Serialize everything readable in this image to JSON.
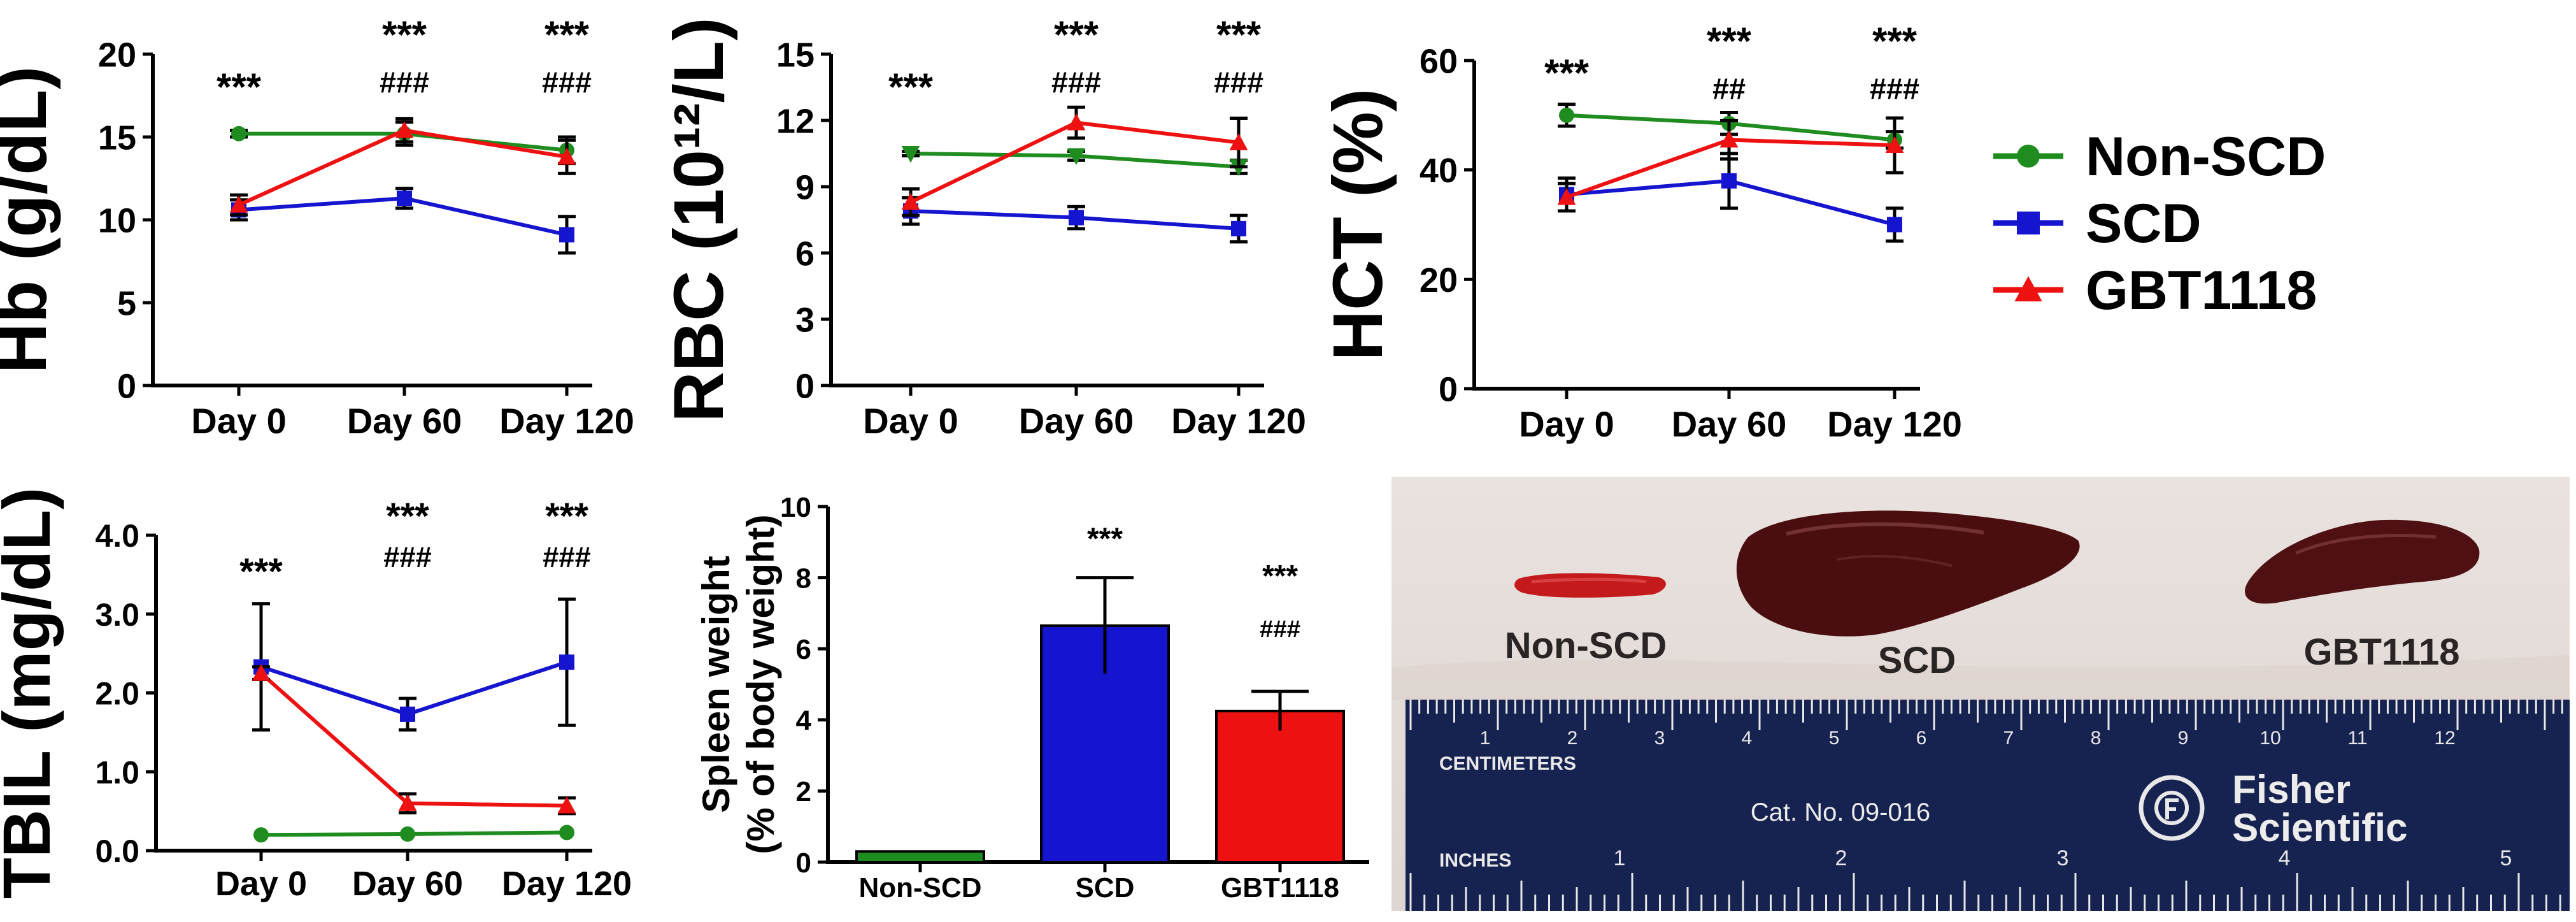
{
  "chart_data": [
    {
      "id": "hb",
      "type": "line",
      "ylabel": "Hb (g/dL)",
      "categories": [
        "Day 0",
        "Day 60",
        "Day 120"
      ],
      "ylim": [
        0,
        20
      ],
      "yticks": [
        "0",
        "5",
        "10",
        "15",
        "20"
      ],
      "series": [
        {
          "name": "Non-SCD",
          "color": "#1e8c1e",
          "marker": "circle",
          "values": [
            15.2,
            15.2,
            14.2
          ],
          "err": [
            0.2,
            0.7,
            0.8
          ]
        },
        {
          "name": "SCD",
          "color": "#1515d0",
          "marker": "square",
          "values": [
            10.6,
            11.3,
            9.1
          ],
          "err": [
            0.6,
            0.6,
            1.1
          ]
        },
        {
          "name": "GBT1118",
          "color": "#ee1111",
          "marker": "triangle",
          "values": [
            10.9,
            15.4,
            13.8
          ],
          "err": [
            0.6,
            0.7,
            1.0
          ]
        }
      ],
      "annotations": [
        [
          "***"
        ],
        [
          "***",
          "###"
        ],
        [
          "***",
          "###"
        ]
      ]
    },
    {
      "id": "rbc",
      "type": "line",
      "ylabel": "RBC (10¹²/L)",
      "categories": [
        "Day 0",
        "Day 60",
        "Day 120"
      ],
      "ylim": [
        0,
        15
      ],
      "yticks": [
        "0",
        "3",
        "6",
        "9",
        "12",
        "15"
      ],
      "series": [
        {
          "name": "Non-SCD",
          "color": "#1e8c1e",
          "marker": "triangle-down",
          "values": [
            10.5,
            10.4,
            9.9
          ],
          "err": [
            0.1,
            0.2,
            0.3
          ]
        },
        {
          "name": "SCD",
          "color": "#1515d0",
          "marker": "square",
          "values": [
            7.9,
            7.6,
            7.1
          ],
          "err": [
            0.6,
            0.5,
            0.6
          ]
        },
        {
          "name": "GBT1118",
          "color": "#ee1111",
          "marker": "triangle",
          "values": [
            8.3,
            11.9,
            11.0
          ],
          "err": [
            0.6,
            0.7,
            1.1
          ]
        }
      ],
      "annotations": [
        [
          "***"
        ],
        [
          "***",
          "###"
        ],
        [
          "***",
          "###"
        ]
      ]
    },
    {
      "id": "hct",
      "type": "line",
      "ylabel": "HCT (%)",
      "categories": [
        "Day 0",
        "Day 60",
        "Day 120"
      ],
      "ylim": [
        0,
        60
      ],
      "yticks": [
        "0",
        "20",
        "40",
        "60"
      ],
      "series": [
        {
          "name": "Non-SCD",
          "color": "#1e8c1e",
          "marker": "circle",
          "values": [
            50,
            48.5,
            45.5
          ],
          "err": [
            2.0,
            2.0,
            1.5
          ]
        },
        {
          "name": "SCD",
          "color": "#1515d0",
          "marker": "square",
          "values": [
            35.5,
            38,
            30
          ],
          "err": [
            3.0,
            5.0,
            3.0
          ]
        },
        {
          "name": "GBT1118",
          "color": "#ee1111",
          "marker": "triangle",
          "values": [
            35,
            45.5,
            44.5
          ],
          "err": [
            2.5,
            3.5,
            5.0
          ]
        }
      ],
      "annotations": [
        [
          "***"
        ],
        [
          "***",
          "##"
        ],
        [
          "***",
          "###"
        ]
      ]
    },
    {
      "id": "tbil",
      "type": "line",
      "ylabel": "TBIL (mg/dL)",
      "categories": [
        "Day 0",
        "Day 60",
        "Day 120"
      ],
      "ylim": [
        0,
        4
      ],
      "yticks": [
        "0.0",
        "1.0",
        "2.0",
        "3.0",
        "4.0"
      ],
      "series": [
        {
          "name": "Non-SCD",
          "color": "#1e8c1e",
          "marker": "circle",
          "values": [
            0.2,
            0.21,
            0.23
          ],
          "err": [
            0.01,
            0.01,
            0.01
          ]
        },
        {
          "name": "SCD",
          "color": "#1515d0",
          "marker": "square",
          "values": [
            2.33,
            1.73,
            2.39
          ],
          "err": [
            0.8,
            0.2,
            0.8
          ]
        },
        {
          "name": "GBT1118",
          "color": "#ee1111",
          "marker": "triangle",
          "values": [
            2.25,
            0.6,
            0.57
          ],
          "err": [
            0.08,
            0.12,
            0.1
          ]
        }
      ],
      "annotations": [
        [
          "***"
        ],
        [
          "***",
          "###"
        ],
        [
          "***",
          "###"
        ]
      ]
    },
    {
      "id": "spleen",
      "type": "bar",
      "ylabel": "Spleen weight (% of body weight)",
      "categories": [
        "Non-SCD",
        "SCD",
        "GBT1118"
      ],
      "ylim": [
        0,
        10
      ],
      "yticks": [
        "0",
        "2",
        "4",
        "6",
        "8",
        "10"
      ],
      "values": [
        0.3,
        6.65,
        4.25
      ],
      "err": [
        0.03,
        1.35,
        0.55
      ],
      "colors": [
        "#1e8c1e",
        "#1515d0",
        "#ee1111"
      ],
      "annotations": [
        [],
        [
          "***"
        ],
        [
          "***",
          "###"
        ]
      ]
    }
  ],
  "legend": [
    {
      "name": "Non-SCD",
      "color": "#1e8c1e",
      "marker": "circle"
    },
    {
      "name": "SCD",
      "color": "#1515d0",
      "marker": "square"
    },
    {
      "name": "GBT1118",
      "color": "#ee1111",
      "marker": "triangle"
    }
  ],
  "photo": {
    "labels": [
      "Non-SCD",
      "SCD",
      "GBT1118"
    ],
    "ruler_centimeters": "CENTIMETERS",
    "ruler_inches": "INCHES",
    "catalog": "Cat. No. 09-016",
    "brand_line1": "Fisher",
    "brand_line2": "Scientific",
    "cm_numbers": [
      "1",
      "2",
      "3",
      "4",
      "5",
      "6",
      "7",
      "8",
      "9",
      "10",
      "11",
      "12"
    ],
    "inch_numbers": [
      "1",
      "2",
      "3",
      "4",
      "5"
    ]
  }
}
